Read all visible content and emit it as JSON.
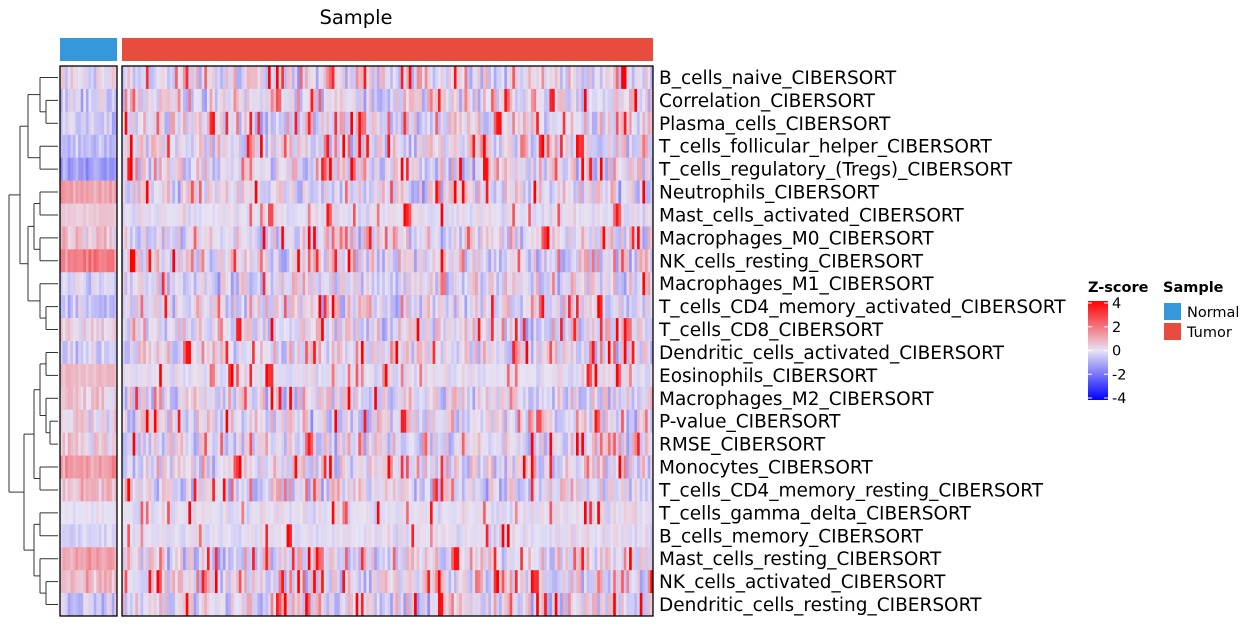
{
  "chart_data": {
    "type": "heatmap",
    "title": "Sample",
    "groups": [
      {
        "name": "Normal",
        "color": "#3498db",
        "n_columns": 22
      },
      {
        "name": "Tumor",
        "color": "#e74c3c",
        "n_columns": 200
      }
    ],
    "rows": [
      "B_cells_naive_CIBERSORT",
      "Correlation_CIBERSORT",
      "Plasma_cells_CIBERSORT",
      "T_cells_follicular_helper_CIBERSORT",
      "T_cells_regulatory_(Tregs)_CIBERSORT",
      "Neutrophils_CIBERSORT",
      "Mast_cells_activated_CIBERSORT",
      "Macrophages_M0_CIBERSORT",
      "NK_cells_resting_CIBERSORT",
      "Macrophages_M1_CIBERSORT",
      "T_cells_CD4_memory_activated_CIBERSORT",
      "T_cells_CD8_CIBERSORT",
      "Dendritic_cells_activated_CIBERSORT",
      "Eosinophils_CIBERSORT",
      "Macrophages_M2_CIBERSORT",
      "P-value_CIBERSORT",
      "RMSE_CIBERSORT",
      "Monocytes_CIBERSORT",
      "T_cells_CD4_memory_resting_CIBERSORT",
      "T_cells_gamma_delta_CIBERSORT",
      "B_cells_memory_CIBERSORT",
      "Mast_cells_resting_CIBERSORT",
      "NK_cells_activated_CIBERSORT",
      "Dendritic_cells_resting_CIBERSORT"
    ],
    "normal_mean_zscore": [
      0,
      -0.3,
      -0.3,
      -0.6,
      -1.0,
      1.1,
      0.4,
      0.4,
      1.6,
      -0.3,
      -0.4,
      0.2,
      -0.2,
      0.6,
      0.4,
      0.3,
      0.3,
      1.1,
      0.6,
      0,
      -0.2,
      1.0,
      0.5,
      -0.4
    ],
    "zscore_range": [
      -4,
      4
    ],
    "colorscale": [
      {
        "value": -4,
        "color": "#0000ff"
      },
      {
        "value": 0,
        "color": "#e8e4f4"
      },
      {
        "value": 4,
        "color": "#ff0000"
      }
    ],
    "dendrogram_clusters": [
      [
        "B_cells_naive_CIBERSORT",
        "Correlation_CIBERSORT",
        "Plasma_cells_CIBERSORT"
      ],
      [
        "T_cells_follicular_helper_CIBERSORT",
        "T_cells_regulatory_(Tregs)_CIBERSORT"
      ],
      [
        "Neutrophils_CIBERSORT",
        "Mast_cells_activated_CIBERSORT",
        "Macrophages_M0_CIBERSORT",
        "NK_cells_resting_CIBERSORT"
      ],
      [
        "Macrophages_M1_CIBERSORT",
        "T_cells_CD4_memory_activated_CIBERSORT",
        "T_cells_CD8_CIBERSORT"
      ],
      [
        "Dendritic_cells_activated_CIBERSORT",
        "Eosinophils_CIBERSORT",
        "Macrophages_M2_CIBERSORT",
        "P-value_CIBERSORT",
        "RMSE_CIBERSORT",
        "Monocytes_CIBERSORT",
        "T_cells_CD4_memory_resting_CIBERSORT"
      ],
      [
        "T_cells_gamma_delta_CIBERSORT",
        "B_cells_memory_CIBERSORT",
        "Mast_cells_resting_CIBERSORT",
        "NK_cells_activated_CIBERSORT",
        "Dendritic_cells_resting_CIBERSORT"
      ]
    ],
    "legend": {
      "zscore_title": "Z-score",
      "zscore_ticks": [
        "4",
        "2",
        "0",
        "-2",
        "-4"
      ],
      "sample_title": "Sample",
      "sample_entries": [
        "Normal",
        "Tumor"
      ],
      "position": "right"
    }
  }
}
